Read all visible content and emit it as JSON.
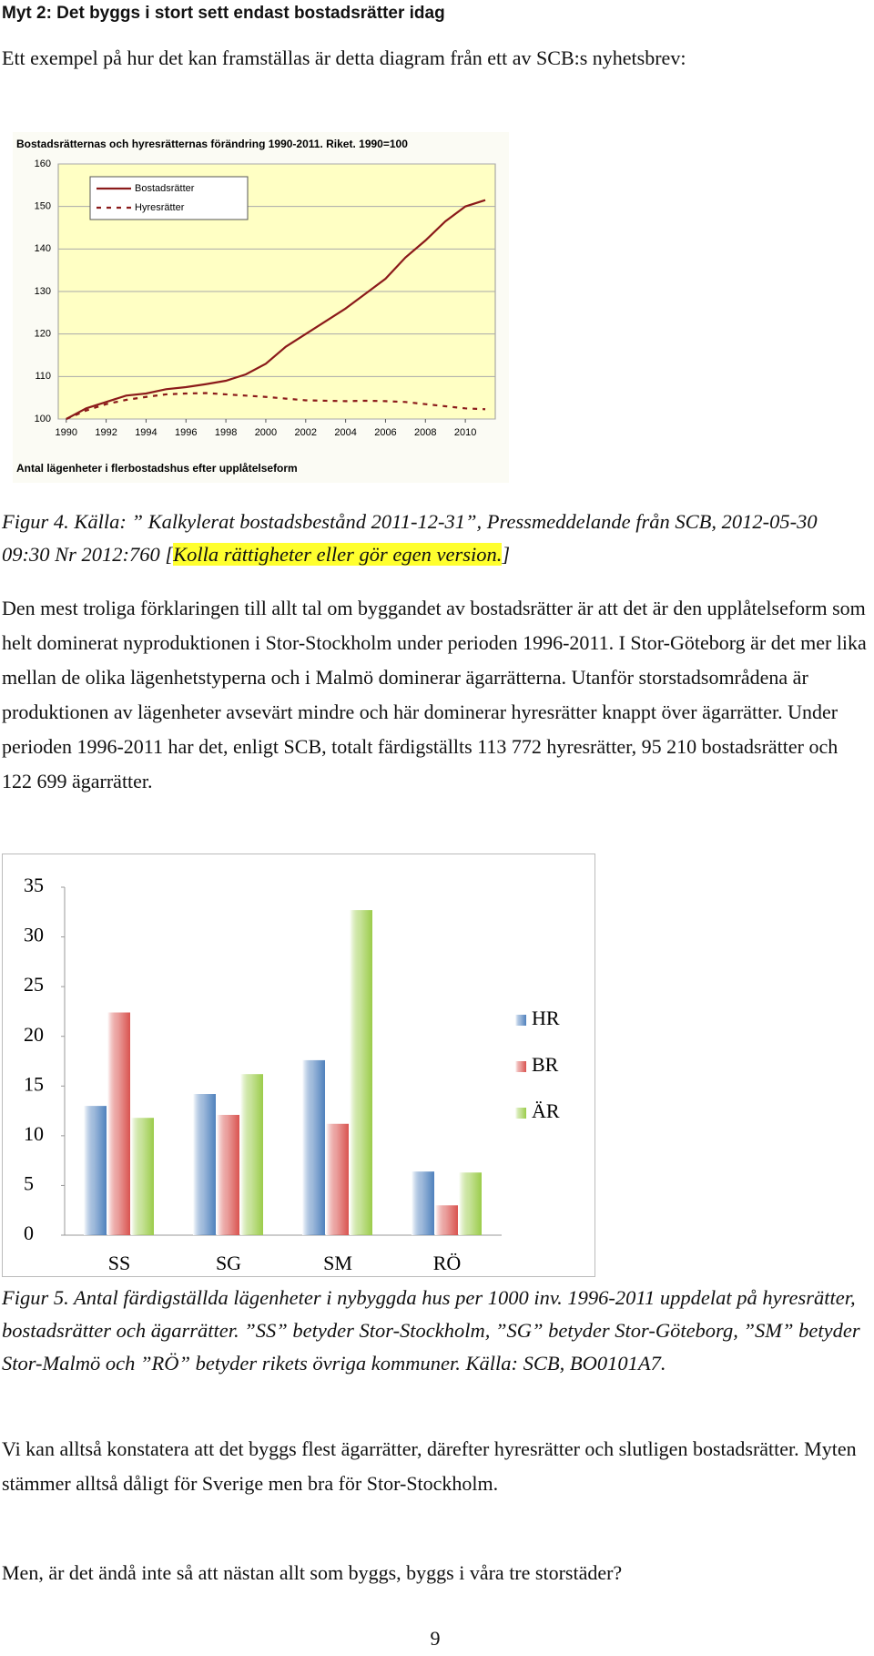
{
  "heading": "Myt 2: Det byggs i stort sett endast bostadsrätter idag",
  "intro": "Ett exempel på hur det kan framställas är detta diagram från ett av SCB:s nyhetsbrev:",
  "chart_data": [
    {
      "type": "line",
      "title": "Bostadsrätternas och hyresrätternas förändring 1990-2011. Riket. 1990=100",
      "footnote": "Antal lägenheter i flerbostadshus efter upplåtelseform",
      "x": [
        1990,
        1991,
        1992,
        1993,
        1994,
        1995,
        1996,
        1997,
        1998,
        1999,
        2000,
        2001,
        2002,
        2003,
        2004,
        2005,
        2006,
        2007,
        2008,
        2009,
        2010,
        2011
      ],
      "series": [
        {
          "name": "Bostadsrätter",
          "color": "#8b1a1a",
          "line_style": "solid",
          "values": [
            100,
            102.5,
            104,
            105.5,
            106,
            107,
            107.5,
            108.2,
            109,
            110.5,
            113,
            117,
            120,
            123,
            126,
            129.5,
            133,
            138,
            142,
            146.5,
            150,
            151.5
          ]
        },
        {
          "name": "Hyresrätter",
          "color": "#8b1a1a",
          "line_style": "dashed",
          "values": [
            100,
            102,
            103.5,
            104.5,
            105.2,
            105.8,
            106,
            106.1,
            105.8,
            105.5,
            105.2,
            104.8,
            104.4,
            104.3,
            104.2,
            104.3,
            104.2,
            104,
            103.5,
            103,
            102.5,
            102.3
          ]
        }
      ],
      "xlim": [
        1989.6,
        2011.5
      ],
      "xticks": [
        1990,
        1992,
        1994,
        1996,
        1998,
        2000,
        2002,
        2004,
        2006,
        2008,
        2010
      ],
      "ylim": [
        100,
        160
      ],
      "yticks": [
        100,
        110,
        120,
        130,
        140,
        150,
        160
      ],
      "grid": true,
      "legend": "top-left",
      "plot_color": "#ffffc4"
    },
    {
      "type": "bar",
      "categories": [
        "SS",
        "SG",
        "SM",
        "RÖ"
      ],
      "series": [
        {
          "name": "HR",
          "color": "#4f81bd",
          "values": [
            13,
            14.2,
            17.6,
            6.4
          ]
        },
        {
          "name": "BR",
          "color": "#d9534f",
          "values": [
            22.4,
            12.1,
            11.2,
            3
          ]
        },
        {
          "name": "ÄR",
          "color": "#9bcc4a",
          "values": [
            11.8,
            16.2,
            32.7,
            6.3
          ]
        }
      ],
      "ylim": [
        0,
        35
      ],
      "yticks": [
        0,
        5,
        10,
        15,
        20,
        25,
        30,
        35
      ],
      "grid": false,
      "legend": "right"
    }
  ],
  "caption_4": {
    "text": "Figur 4. Källa: ” Kalkylerat bostadsbestånd 2011-12-31”, Pressmeddelande från SCB, 2012-05-30 09:30 Nr 2012:760 [",
    "highlight": "Kolla rättigheter eller gör egen version.",
    "closing": "]"
  },
  "paragraph_1": "Den mest troliga förklaringen till allt tal om byggandet av bostadsrätter är att det är den upplåtelseform som helt dominerat nyproduktionen i Stor-Stockholm under perioden 1996-2011. I Stor-Göteborg är det mer lika mellan de olika lägenhetstyperna och i Malmö dominerar ägarrätterna. Utanför storstadsområdena är produktionen av lägenheter avsevärt mindre och här dominerar hyresrätter knappt över ägarrätter. Under perioden 1996-2011 har det, enligt SCB, totalt färdigställts 113 772 hyresrätter, 95 210 bostadsrätter och 122 699 ägarrätter.",
  "caption_5": "Figur 5. Antal färdigställda lägenheter i nybyggda hus per 1000 inv. 1996-2011 uppdelat på hyresrätter, bostadsrätter och ägarrätter. ”SS” betyder Stor-Stockholm, ”SG” betyder Stor-Göteborg, ”SM” betyder Stor-Malmö och ”RÖ” betyder rikets övriga kommuner. Källa: SCB, BO0101A7.",
  "paragraph_2": "Vi kan alltså konstatera att det byggs flest ägarrätter, därefter hyresrätter och slutligen bostadsrätter. Myten stämmer alltså dåligt för Sverige men bra för Stor-Stockholm.",
  "paragraph_3": "Men, är det ändå inte så att nästan allt som byggs, byggs i våra tre storstäder?",
  "page_number": "9"
}
